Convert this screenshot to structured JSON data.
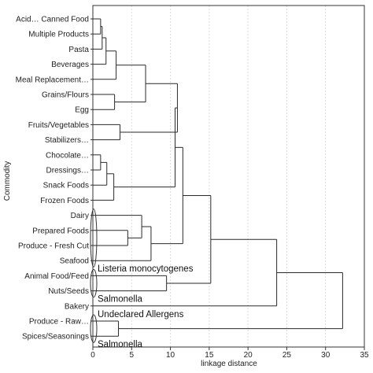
{
  "chart_data": {
    "type": "dendrogram",
    "orientation": "horizontal",
    "ylabel": "Commodity",
    "xlabel": "linkage distance",
    "xlim": [
      0,
      35
    ],
    "xticks": [
      0,
      5,
      10,
      15,
      20,
      25,
      30,
      35
    ],
    "grid": true,
    "leaves": [
      "Acid… Canned Food",
      "Multiple Products",
      "Pasta",
      "Beverages",
      "Meal Replacement…",
      "Grains/Flours",
      "Egg",
      "Fruits/Vegetables",
      "Stabilizers…",
      "Chocolate…",
      "Dressings…",
      "Snack Foods",
      "Frozen Foods",
      "Dairy",
      "Prepared Foods",
      "Produce - Fresh Cut",
      "Seafood",
      "Animal Food/Feed",
      "Nuts/Seeds",
      "Bakery",
      "Produce - Raw…",
      "Spices/Seasonings"
    ],
    "merges": [
      {
        "id": "m1",
        "children": [
          "L0",
          "L1"
        ],
        "height": 1.0
      },
      {
        "id": "m2",
        "children": [
          "m1",
          "L2"
        ],
        "height": 1.2
      },
      {
        "id": "m3",
        "children": [
          "m2",
          "L3"
        ],
        "height": 1.7
      },
      {
        "id": "m4",
        "children": [
          "m3",
          "L4"
        ],
        "height": 3.0
      },
      {
        "id": "m5",
        "children": [
          "L5",
          "L6"
        ],
        "height": 2.8
      },
      {
        "id": "m6",
        "children": [
          "m4",
          "m5"
        ],
        "height": 6.8
      },
      {
        "id": "m7",
        "children": [
          "L7",
          "L8"
        ],
        "height": 3.5
      },
      {
        "id": "m8",
        "children": [
          "m6",
          "m7"
        ],
        "height": 10.9
      },
      {
        "id": "m9",
        "children": [
          "L9",
          "L10"
        ],
        "height": 1.0
      },
      {
        "id": "m10",
        "children": [
          "m9",
          "L11"
        ],
        "height": 1.8
      },
      {
        "id": "m11",
        "children": [
          "m10",
          "L12"
        ],
        "height": 2.7
      },
      {
        "id": "m12",
        "children": [
          "m8",
          "m11"
        ],
        "height": 10.6
      },
      {
        "id": "m13",
        "children": [
          "L14",
          "L15"
        ],
        "height": 4.5
      },
      {
        "id": "m14",
        "children": [
          "L13",
          "m13"
        ],
        "height": 6.3
      },
      {
        "id": "m15",
        "children": [
          "m14",
          "L16"
        ],
        "height": 7.5
      },
      {
        "id": "m16",
        "children": [
          "m12",
          "m15"
        ],
        "height": 11.6
      },
      {
        "id": "m17",
        "children": [
          "L17",
          "L18"
        ],
        "height": 9.5
      },
      {
        "id": "m18",
        "children": [
          "m16",
          "m17"
        ],
        "height": 15.2
      },
      {
        "id": "m19",
        "children": [
          "m18",
          "L19"
        ],
        "height": 23.7
      },
      {
        "id": "m20",
        "children": [
          "L20",
          "L21"
        ],
        "height": 3.3
      },
      {
        "id": "m21",
        "children": [
          "m19",
          "m20"
        ],
        "height": 32.2
      }
    ],
    "cluster_marks": [
      {
        "leaves": [
          13,
          16
        ],
        "label": "Listeria monocytogenes"
      },
      {
        "leaves": [
          17,
          18
        ],
        "label": "Salmonella"
      },
      {
        "leaves": [
          19,
          19
        ],
        "label": "Undeclared Allergens"
      },
      {
        "leaves": [
          20,
          21
        ],
        "label": "Salmonella"
      }
    ]
  }
}
